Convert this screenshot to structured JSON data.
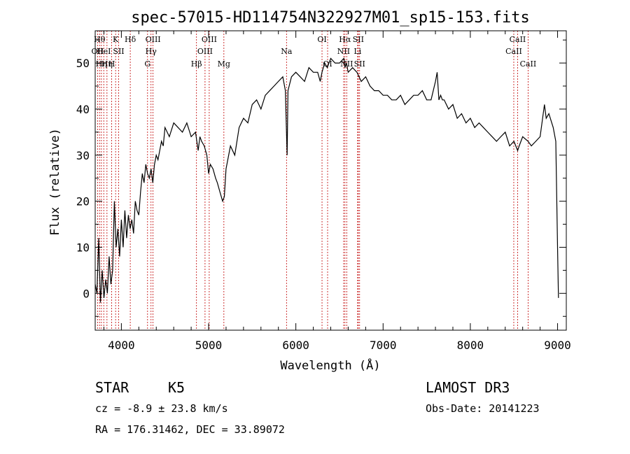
{
  "chart_data": {
    "type": "line",
    "title": "spec-57015-HD114754N322927M01_sp15-153.fits",
    "xlabel": "Wavelength (Å)",
    "ylabel": "Flux (relative)",
    "xlim": [
      3700,
      9100
    ],
    "ylim": [
      -8,
      57
    ],
    "x_ticks": [
      {
        "value": 4000,
        "label": "4000"
      },
      {
        "value": 5000,
        "label": "5000"
      },
      {
        "value": 6000,
        "label": "6000"
      },
      {
        "value": 7000,
        "label": "7000"
      },
      {
        "value": 8000,
        "label": "8000"
      },
      {
        "value": 9000,
        "label": "9000"
      }
    ],
    "y_ticks": [
      {
        "value": 0,
        "label": "0"
      },
      {
        "value": 10,
        "label": "10"
      },
      {
        "value": 20,
        "label": "20"
      },
      {
        "value": 30,
        "label": "30"
      },
      {
        "value": 40,
        "label": "40"
      },
      {
        "value": 50,
        "label": "50"
      }
    ],
    "series": [
      {
        "x": [
          3700,
          3720,
          3740,
          3760,
          3780,
          3800,
          3820,
          3840,
          3860,
          3880,
          3900,
          3920,
          3940,
          3960,
          3980,
          4000,
          4020,
          4040,
          4060,
          4080,
          4100,
          4120,
          4140,
          4160,
          4180,
          4200,
          4220,
          4240,
          4260,
          4280,
          4300,
          4320,
          4340,
          4360,
          4380,
          4400,
          4420,
          4440,
          4460,
          4480,
          4500,
          4550,
          4600,
          4650,
          4700,
          4750,
          4800,
          4850,
          4880,
          4900,
          4920,
          4950,
          4980,
          5000,
          5020,
          5050,
          5080,
          5100,
          5130,
          5160,
          5180,
          5200,
          5250,
          5300,
          5350,
          5400,
          5450,
          5500,
          5550,
          5600,
          5650,
          5700,
          5750,
          5800,
          5850,
          5880,
          5890,
          5900,
          5910,
          5950,
          6000,
          6050,
          6100,
          6150,
          6200,
          6250,
          6280,
          6300,
          6330,
          6360,
          6400,
          6450,
          6500,
          6550,
          6563,
          6580,
          6600,
          6650,
          6700,
          6750,
          6800,
          6850,
          6900,
          6950,
          7000,
          7050,
          7100,
          7150,
          7200,
          7250,
          7300,
          7350,
          7400,
          7450,
          7500,
          7550,
          7600,
          7620,
          7640,
          7660,
          7680,
          7700,
          7750,
          7800,
          7850,
          7900,
          7950,
          8000,
          8050,
          8100,
          8150,
          8200,
          8250,
          8300,
          8350,
          8400,
          8450,
          8500,
          8542,
          8560,
          8600,
          8662,
          8700,
          8750,
          8800,
          8850,
          8870,
          8900,
          8950,
          8980,
          9000,
          9010
        ],
        "y": [
          2,
          0,
          12,
          -2,
          5,
          -1,
          3,
          0,
          8,
          2,
          5,
          20,
          10,
          14,
          8,
          16,
          10,
          18,
          12,
          17,
          14,
          16,
          13,
          20,
          18,
          17,
          22,
          26,
          24,
          28,
          26,
          25,
          27,
          24,
          28,
          30,
          29,
          31,
          33,
          32,
          36,
          34,
          37,
          36,
          35,
          37,
          34,
          35,
          31,
          34,
          33,
          32,
          30,
          26,
          28,
          27,
          25,
          24,
          22,
          20,
          21,
          27,
          32,
          30,
          36,
          38,
          37,
          41,
          42,
          40,
          43,
          44,
          45,
          46,
          47,
          44,
          37,
          30,
          44,
          47,
          48,
          47,
          46,
          49,
          48,
          48,
          46,
          48,
          50,
          49,
          51,
          50,
          50,
          51,
          49,
          50,
          48,
          49,
          48,
          46,
          47,
          45,
          44,
          44,
          43,
          43,
          42,
          42,
          43,
          41,
          42,
          43,
          43,
          44,
          42,
          42,
          46,
          48,
          42,
          43,
          42,
          42,
          40,
          41,
          38,
          39,
          37,
          38,
          36,
          37,
          36,
          35,
          34,
          33,
          34,
          35,
          32,
          33,
          31,
          32,
          34,
          33,
          32,
          33,
          34,
          41,
          38,
          39,
          36,
          33,
          10,
          -1
        ]
      }
    ],
    "lines": [
      {
        "w": 3727,
        "label": "OII",
        "row": 1
      },
      {
        "w": 3750,
        "label": "Hθ",
        "row": 0
      },
      {
        "w": 3771,
        "label": "Hη",
        "row": 2
      },
      {
        "w": 3798,
        "label": "HeI",
        "row": 1
      },
      {
        "w": 3835,
        "label": "Hη",
        "row": 2
      },
      {
        "w": 3889,
        "label": "H",
        "row": 2
      },
      {
        "w": 3934,
        "label": "K",
        "row": 0
      },
      {
        "w": 3969,
        "label": "SII",
        "row": 1
      },
      {
        "w": 4102,
        "label": "Hδ",
        "row": 0
      },
      {
        "w": 4300,
        "label": "G",
        "row": 2
      },
      {
        "w": 4340,
        "label": "Hγ",
        "row": 1
      },
      {
        "w": 4363,
        "label": "OIII",
        "row": 0
      },
      {
        "w": 4861,
        "label": "Hβ",
        "row": 2
      },
      {
        "w": 4959,
        "label": "OIII",
        "row": 1
      },
      {
        "w": 5007,
        "label": "OIII",
        "row": 0
      },
      {
        "w": 5175,
        "label": "Mg",
        "row": 2
      },
      {
        "w": 5893,
        "label": "Na",
        "row": 1
      },
      {
        "w": 6300,
        "label": "OI",
        "row": 0
      },
      {
        "w": 6364,
        "label": "OI",
        "row": 2
      },
      {
        "w": 6548,
        "label": "NII",
        "row": 1
      },
      {
        "w": 6563,
        "label": "Hα",
        "row": 0
      },
      {
        "w": 6583,
        "label": "NII",
        "row": 2
      },
      {
        "w": 6708,
        "label": "Li",
        "row": 1
      },
      {
        "w": 6716,
        "label": "SII",
        "row": 0
      },
      {
        "w": 6731,
        "label": "SII",
        "row": 2
      },
      {
        "w": 8498,
        "label": "CaII",
        "row": 1
      },
      {
        "w": 8542,
        "label": "CaII",
        "row": 0
      },
      {
        "w": 8662,
        "label": "CaII",
        "row": 2
      }
    ]
  },
  "info": {
    "class_label": "STAR",
    "subclass_label": "K5",
    "survey": "LAMOST DR3",
    "cz": "cz = -8.9 ± 23.8 km/s",
    "obs_date": "Obs-Date: 20141223",
    "coords": "RA = 176.31462, DEC =  33.89072"
  },
  "colors": {
    "spectrum": "#000000",
    "line_marker": "#c00000",
    "axes": "#000000"
  }
}
